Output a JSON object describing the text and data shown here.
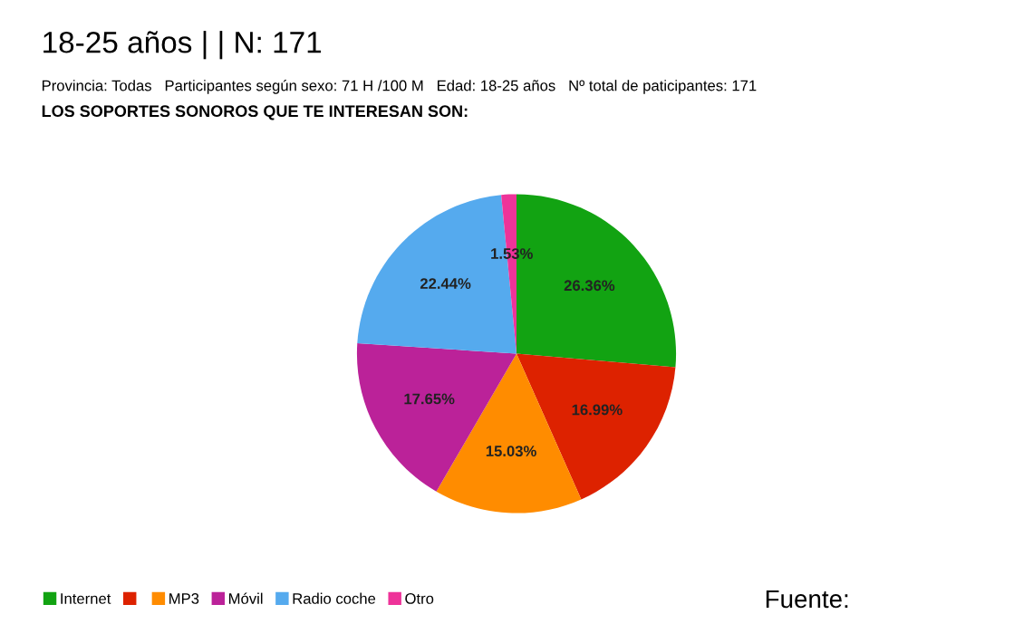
{
  "chart_data": {
    "type": "pie",
    "title": "18-25 años | | N: 171",
    "subtitle": "Provincia: Todas   Participantes según sexo: 71 H /100 M   Edad: 18-25 años   Nº total de paticipantes: 171",
    "annotations": [
      "LOS SOPORTES SONOROS QUE TE INTERESAN SON:",
      "Fuente:"
    ],
    "categories": [
      "Internet",
      null,
      "MP3",
      "Móvil",
      "Radio coche",
      "Otro"
    ],
    "values": [
      26.36,
      16.99,
      15.03,
      17.65,
      22.44,
      1.53
    ],
    "value_labels": [
      "26.36%",
      "16.99%",
      "15.03%",
      "17.65%",
      "22.44%",
      "1.53%"
    ],
    "colors": [
      "#12a312",
      "#dd2200",
      "#ff8c00",
      "#bb2299",
      "#55aaee",
      "#ee3399"
    ],
    "legend": "bottom left"
  }
}
